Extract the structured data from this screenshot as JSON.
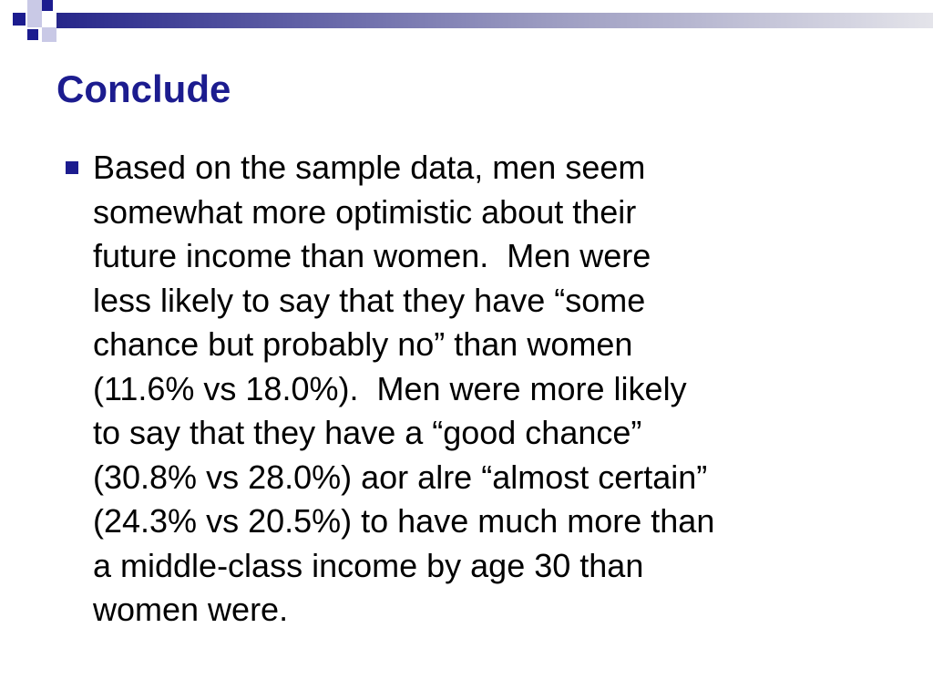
{
  "title": "Conclude",
  "bullets": [
    {
      "lines": [
        "Based on the sample data, men seem",
        "somewhat more optimistic about their",
        "future income than women.  Men were",
        "less likely to say that they have “some",
        "chance but probably no” than women",
        "(11.6% vs 18.0%).  Men were more likely",
        "to say that they have a “good chance”",
        "(30.8% vs 28.0%) aor alre “almost certain”",
        "(24.3% vs 20.5%) to have much more than",
        "a middle-class income by age 30 than",
        "women were."
      ]
    }
  ]
}
